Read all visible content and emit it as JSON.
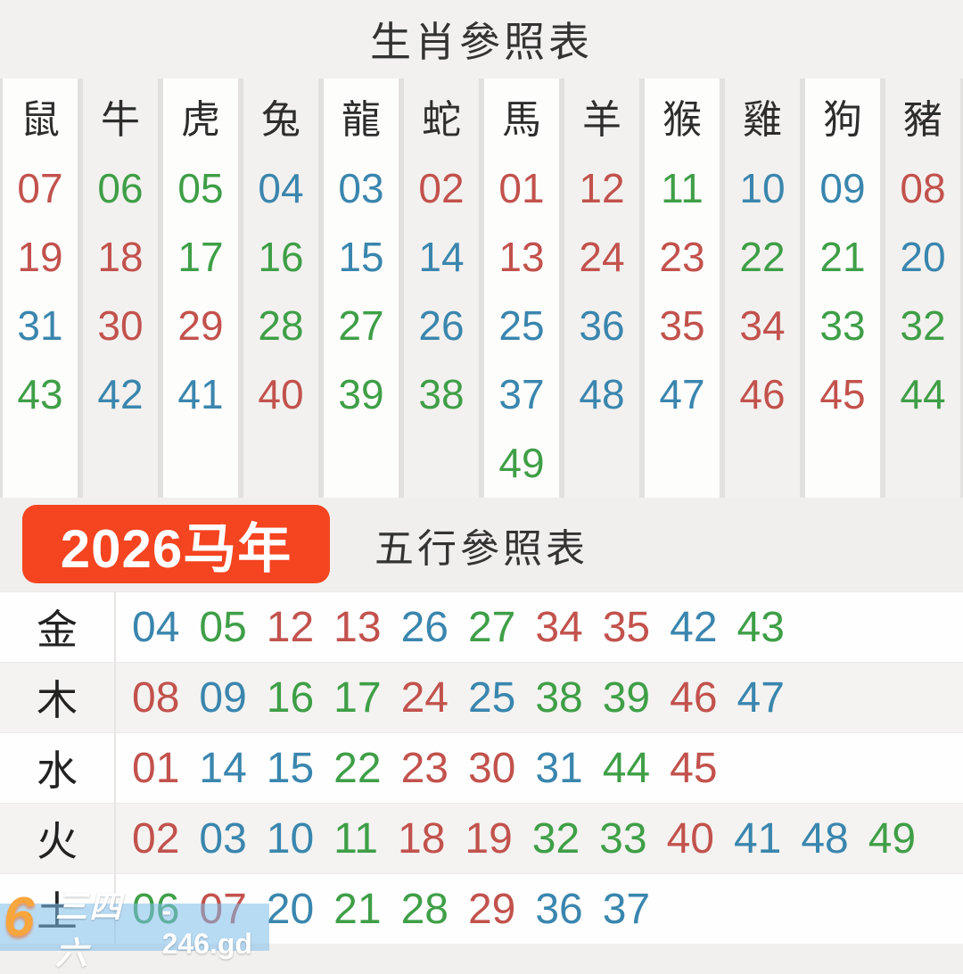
{
  "page": {
    "title": "生肖參照表",
    "badge_label": "2026马年",
    "subtitle": "五行參照表"
  },
  "colors": {
    "red": "#c2524d",
    "green": "#3f9f47",
    "blue": "#3a86ae",
    "badge_background": "#f44420"
  },
  "zodiac_table": {
    "columns": [
      {
        "animal": "鼠",
        "numbers": [
          [
            "07",
            "red"
          ],
          [
            "19",
            "red"
          ],
          [
            "31",
            "blue"
          ],
          [
            "43",
            "green"
          ]
        ]
      },
      {
        "animal": "牛",
        "numbers": [
          [
            "06",
            "green"
          ],
          [
            "18",
            "red"
          ],
          [
            "30",
            "red"
          ],
          [
            "42",
            "blue"
          ]
        ]
      },
      {
        "animal": "虎",
        "numbers": [
          [
            "05",
            "green"
          ],
          [
            "17",
            "green"
          ],
          [
            "29",
            "red"
          ],
          [
            "41",
            "blue"
          ]
        ]
      },
      {
        "animal": "兔",
        "numbers": [
          [
            "04",
            "blue"
          ],
          [
            "16",
            "green"
          ],
          [
            "28",
            "green"
          ],
          [
            "40",
            "red"
          ]
        ]
      },
      {
        "animal": "龍",
        "numbers": [
          [
            "03",
            "blue"
          ],
          [
            "15",
            "blue"
          ],
          [
            "27",
            "green"
          ],
          [
            "39",
            "green"
          ]
        ]
      },
      {
        "animal": "蛇",
        "numbers": [
          [
            "02",
            "red"
          ],
          [
            "14",
            "blue"
          ],
          [
            "26",
            "blue"
          ],
          [
            "38",
            "green"
          ]
        ]
      },
      {
        "animal": "馬",
        "numbers": [
          [
            "01",
            "red"
          ],
          [
            "13",
            "red"
          ],
          [
            "25",
            "blue"
          ],
          [
            "37",
            "blue"
          ],
          [
            "49",
            "green"
          ]
        ]
      },
      {
        "animal": "羊",
        "numbers": [
          [
            "12",
            "red"
          ],
          [
            "24",
            "red"
          ],
          [
            "36",
            "blue"
          ],
          [
            "48",
            "blue"
          ]
        ]
      },
      {
        "animal": "猴",
        "numbers": [
          [
            "11",
            "green"
          ],
          [
            "23",
            "red"
          ],
          [
            "35",
            "red"
          ],
          [
            "47",
            "blue"
          ]
        ]
      },
      {
        "animal": "雞",
        "numbers": [
          [
            "10",
            "blue"
          ],
          [
            "22",
            "green"
          ],
          [
            "34",
            "red"
          ],
          [
            "46",
            "red"
          ]
        ]
      },
      {
        "animal": "狗",
        "numbers": [
          [
            "09",
            "blue"
          ],
          [
            "21",
            "green"
          ],
          [
            "33",
            "green"
          ],
          [
            "45",
            "red"
          ]
        ]
      },
      {
        "animal": "豬",
        "numbers": [
          [
            "08",
            "red"
          ],
          [
            "20",
            "blue"
          ],
          [
            "32",
            "green"
          ],
          [
            "44",
            "green"
          ]
        ]
      }
    ]
  },
  "elements_table": {
    "rows": [
      {
        "element": "金",
        "numbers": [
          [
            "04",
            "blue"
          ],
          [
            "05",
            "green"
          ],
          [
            "12",
            "red"
          ],
          [
            "13",
            "red"
          ],
          [
            "26",
            "blue"
          ],
          [
            "27",
            "green"
          ],
          [
            "34",
            "red"
          ],
          [
            "35",
            "red"
          ],
          [
            "42",
            "blue"
          ],
          [
            "43",
            "green"
          ]
        ]
      },
      {
        "element": "木",
        "numbers": [
          [
            "08",
            "red"
          ],
          [
            "09",
            "blue"
          ],
          [
            "16",
            "green"
          ],
          [
            "17",
            "green"
          ],
          [
            "24",
            "red"
          ],
          [
            "25",
            "blue"
          ],
          [
            "38",
            "green"
          ],
          [
            "39",
            "green"
          ],
          [
            "46",
            "red"
          ],
          [
            "47",
            "blue"
          ]
        ]
      },
      {
        "element": "水",
        "numbers": [
          [
            "01",
            "red"
          ],
          [
            "14",
            "blue"
          ],
          [
            "15",
            "blue"
          ],
          [
            "22",
            "green"
          ],
          [
            "23",
            "red"
          ],
          [
            "30",
            "red"
          ],
          [
            "31",
            "blue"
          ],
          [
            "44",
            "green"
          ],
          [
            "45",
            "red"
          ]
        ]
      },
      {
        "element": "火",
        "numbers": [
          [
            "02",
            "red"
          ],
          [
            "03",
            "blue"
          ],
          [
            "10",
            "blue"
          ],
          [
            "11",
            "green"
          ],
          [
            "18",
            "red"
          ],
          [
            "19",
            "red"
          ],
          [
            "32",
            "green"
          ],
          [
            "33",
            "green"
          ],
          [
            "40",
            "red"
          ],
          [
            "41",
            "blue"
          ],
          [
            "48",
            "blue"
          ],
          [
            "49",
            "green"
          ]
        ]
      },
      {
        "element": "土",
        "numbers": [
          [
            "06",
            "green"
          ],
          [
            "07",
            "red"
          ],
          [
            "20",
            "blue"
          ],
          [
            "21",
            "green"
          ],
          [
            "28",
            "green"
          ],
          [
            "29",
            "red"
          ],
          [
            "36",
            "blue"
          ],
          [
            "37",
            "blue"
          ]
        ]
      }
    ]
  },
  "watermark": {
    "logo": "6",
    "brand": "三四六",
    "domain": "- 246.gd"
  }
}
